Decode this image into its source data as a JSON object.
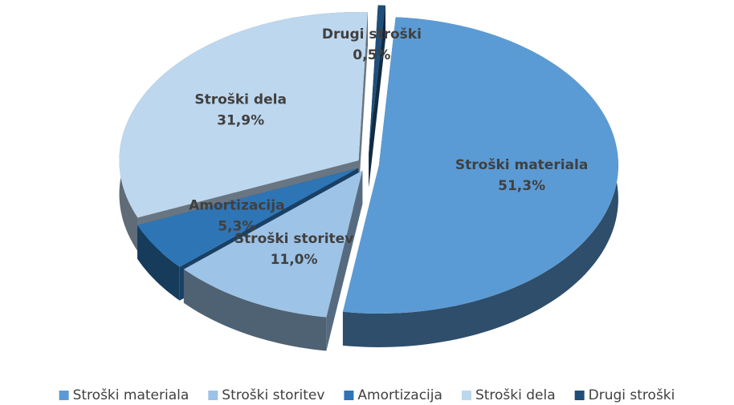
{
  "chart_data": {
    "type": "pie",
    "categories": [
      "Stroški materiala",
      "Stroški storitev",
      "Amortizacija",
      "Stroški dela",
      "Drugi stroški"
    ],
    "values": [
      51.3,
      11.0,
      5.3,
      31.9,
      0.5
    ],
    "value_labels": [
      "51,3%",
      "11,0%",
      "5,3%",
      "31,9%",
      "0,5%"
    ],
    "colors": [
      "#5b9bd5",
      "#9dc3e6",
      "#2e75b6",
      "#bdd7ee",
      "#1f4e79"
    ],
    "legend": "bottom"
  }
}
